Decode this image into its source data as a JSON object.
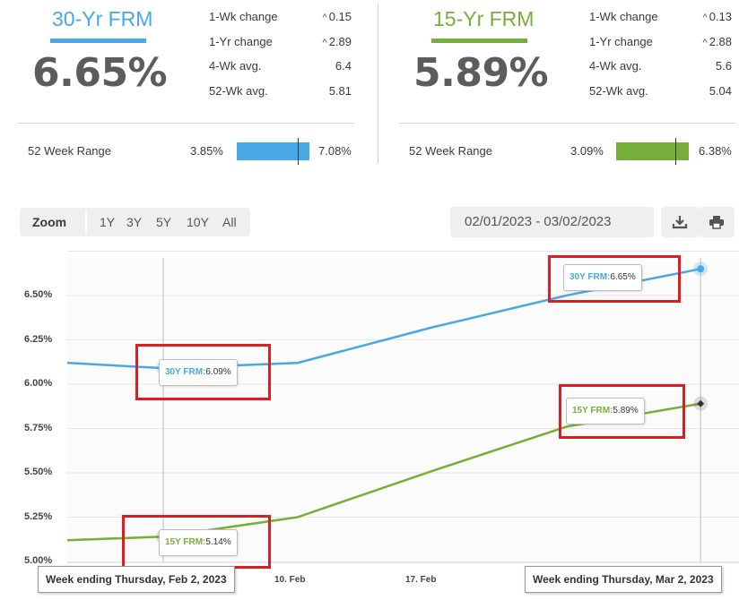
{
  "colors": {
    "blue": "#48a8e6",
    "green": "#77ae3a",
    "red": "#e21a22"
  },
  "panels": [
    {
      "title": "30-Yr FRM",
      "rate": "6.65%",
      "stats": [
        {
          "label": "1-Wk change",
          "value": "0.15",
          "caret": "^"
        },
        {
          "label": "1-Yr change",
          "value": "2.89",
          "caret": "^"
        },
        {
          "label": "4-Wk avg.",
          "value": "6.4",
          "caret": ""
        },
        {
          "label": "52-Wk avg.",
          "value": "5.81",
          "caret": ""
        }
      ],
      "range_label": "52 Week Range",
      "range_low": "3.85%",
      "range_high": "7.08%"
    },
    {
      "title": "15-Yr FRM",
      "rate": "5.89%",
      "stats": [
        {
          "label": "1-Wk change",
          "value": "0.13",
          "caret": "^"
        },
        {
          "label": "1-Yr change",
          "value": "2.88",
          "caret": "^"
        },
        {
          "label": "4-Wk avg.",
          "value": "5.6",
          "caret": ""
        },
        {
          "label": "52-Wk avg.",
          "value": "5.04",
          "caret": ""
        }
      ],
      "range_label": "52 Week Range",
      "range_low": "3.09%",
      "range_high": "6.38%"
    }
  ],
  "toolbar": {
    "zoom_label": "Zoom",
    "zoom_options": [
      "1Y",
      "3Y",
      "5Y",
      "10Y",
      "All"
    ],
    "date_range": "02/01/2023 - 03/02/2023",
    "download_icon": "download-icon",
    "print_icon": "print-icon"
  },
  "chart_data": {
    "type": "line",
    "y_ticks": [
      "6.50%",
      "6.25%",
      "6.00%",
      "5.75%",
      "5.50%",
      "5.25%",
      "5.00%"
    ],
    "x_ticks": [
      "10. Feb",
      "17. Feb"
    ],
    "ylim": [
      5.0,
      6.75
    ],
    "grid": true,
    "series": [
      {
        "name": "30Y FRM",
        "x": [
          "2023-02-02",
          "2023-02-09",
          "2023-02-16",
          "2023-02-23",
          "2023-03-02"
        ],
        "values": [
          6.09,
          6.12,
          6.32,
          6.5,
          6.65
        ]
      },
      {
        "name": "15Y FRM",
        "x": [
          "2023-02-02",
          "2023-02-09",
          "2023-02-16",
          "2023-02-23",
          "2023-03-02"
        ],
        "values": [
          5.14,
          5.25,
          5.51,
          5.76,
          5.89
        ]
      }
    ],
    "tooltips": [
      {
        "series": "30Y FRM",
        "label": "30Y FRM:",
        "value": "6.09%"
      },
      {
        "series": "15Y FRM",
        "label": "15Y FRM:",
        "value": "5.14%"
      },
      {
        "series": "30Y FRM",
        "label": "30Y FRM:",
        "value": "6.65%"
      },
      {
        "series": "15Y FRM",
        "label": "15Y FRM:",
        "value": "5.89%"
      }
    ],
    "crosshair_labels": [
      "Week ending Thursday, Feb 2, 2023",
      "Week ending Thursday, Mar 2, 2023"
    ]
  }
}
